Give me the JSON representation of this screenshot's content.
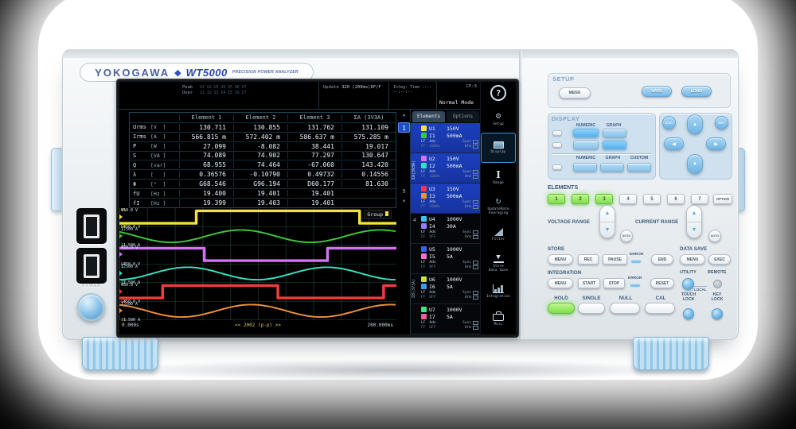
{
  "branding": {
    "maker": "YOKOGAWA",
    "diamond": "◆",
    "model": "WT5000",
    "subtitle": "PRECISION POWER ANALYZER"
  },
  "power_label": "POWER",
  "screen": {
    "topbar": {
      "peak_label": "Peak",
      "peak_values": "U1 U2 U3 U4 U5 U6 U7",
      "over_label": "Over",
      "over_values": "I1 I2 I3 I4 I5 I6 I7",
      "update_label": "Update",
      "update_value": "320 (200ms)",
      "update_suffix": "DF/F",
      "integ_label": "Integ:",
      "time_label": "Time",
      "time_value": "------:--:--",
      "cf": "CF:3",
      "mode": "Normal Mode"
    },
    "table": {
      "headers": [
        "Element 1",
        "Element 2",
        "Element 3",
        "ΣA (3V3A)"
      ],
      "rows": [
        {
          "name": "Urms",
          "unit": "[V  ]",
          "values": [
            "130.711",
            "130.855",
            "131.762",
            "131.109"
          ]
        },
        {
          "name": "Irms",
          "unit": "[A  ]",
          "values": [
            "566.815 m",
            "572.402 m",
            "586.637 m",
            "575.285 m"
          ]
        },
        {
          "name": "P",
          "unit": "[W  ]",
          "values": [
            "27.099",
            "-8.082",
            "38.441",
            "19.017"
          ]
        },
        {
          "name": "S",
          "unit": "[VA ]",
          "values": [
            "74.089",
            "74.902",
            "77.297",
            "130.647"
          ]
        },
        {
          "name": "Q",
          "unit": "[var]",
          "values": [
            "68.955",
            "74.464",
            "-67.060",
            "143.420"
          ]
        },
        {
          "name": "λ",
          "unit": "[   ]",
          "values": [
            "0.36576",
            "-0.10790",
            "0.49732",
            "0.14556"
          ]
        },
        {
          "name": "Φ",
          "unit": "[°  ]",
          "values": [
            "G68.546",
            "G96.194",
            "D60.177",
            "81.630"
          ]
        },
        {
          "name": "fU",
          "unit": "[Hz ]",
          "values": [
            "19.400",
            "19.401",
            "19.401",
            ""
          ]
        },
        {
          "name": "fI",
          "unit": "[Hz ]",
          "values": [
            "19.399",
            "19.403",
            "19.401",
            ""
          ]
        }
      ]
    },
    "pager": {
      "up": "▲",
      "current": "1",
      "dot": "·",
      "last": "9",
      "down": "▼"
    },
    "elements_panel": {
      "tabs": [
        "Elements",
        "Options"
      ],
      "group_a_label": "ΣA(3V3A)",
      "element4_label": "4",
      "group_b_label": "ΣB(3V3A)",
      "sub": {
        "lf": "LF",
        "ff": "FF",
        "adv": "Adv",
        "sync": "Sync",
        "hrm": "Hrm"
      },
      "elements": [
        {
          "u": "U1",
          "u_range": "150V",
          "u_color": "#f2e23c",
          "i": "I1",
          "i_range": "500mA",
          "i_color": "#3dc83d",
          "adv": "100Hz",
          "selected": true
        },
        {
          "u": "U2",
          "u_range": "150V",
          "u_color": "#d173f2",
          "i": "I2",
          "i_range": "500mA",
          "i_color": "#35e0c0",
          "adv": "100Hz",
          "selected": true
        },
        {
          "u": "U3",
          "u_range": "150V",
          "u_color": "#f03c3c",
          "i": "I3",
          "i_range": "500mA",
          "i_color": "#f09035",
          "adv": "100Hz",
          "selected": true
        },
        {
          "u": "U4",
          "u_range": "1000V",
          "u_color": "#35c8f0",
          "i": "I4",
          "i_range": "30A",
          "i_color": "#9a7af5",
          "adv": "OFF"
        },
        {
          "u": "U5",
          "u_range": "1000V",
          "u_color": "#3565f0",
          "i": "I5",
          "i_range": "5A",
          "i_color": "#f573cf",
          "adv": "OFF"
        },
        {
          "u": "U6",
          "u_range": "1000V",
          "u_color": "#cde03c",
          "i": "I6",
          "i_range": "5A",
          "i_color": "#3c9af0",
          "adv": "OFF"
        },
        {
          "u": "U7",
          "u_range": "1000V",
          "u_color": "#3ce580",
          "i": "I7",
          "i_range": "5A",
          "i_color": "#f55c9a",
          "adv": "OFF"
        }
      ]
    },
    "sidebar": {
      "help": "?",
      "items": [
        {
          "label": "Setup"
        },
        {
          "label": "Display"
        },
        {
          "label": "Range"
        },
        {
          "label": "UpdateRate",
          "label2": "Averaging"
        },
        {
          "label": "Filter"
        },
        {
          "label": "Store",
          "label2": "Data Save"
        },
        {
          "label": "Integration"
        },
        {
          "label": "Misc"
        }
      ]
    },
    "waveform": {
      "group_label": "Group",
      "time_start": "0.000s",
      "center_label": "<< 2002 (p-p) >>",
      "time_end": "200.000ms",
      "channels": [
        {
          "ch": "U1",
          "top": "450.0 V",
          "bottom": "-450.0 V",
          "color": "#f2e23c",
          "type": "square",
          "segments": [
            [
              0,
              96,
              -1
            ],
            [
              96,
              300,
              1
            ],
            [
              300,
              346,
              -1
            ]
          ]
        },
        {
          "ch": "I1",
          "top": "1.500 A",
          "bottom": "-1.500 A",
          "color": "#3dc83d",
          "type": "sine",
          "phase": 2.37,
          "period": 174
        },
        {
          "ch": "U2",
          "top": "450.0 V",
          "bottom": "-450.0 V",
          "color": "#d173f2",
          "type": "square",
          "segments": [
            [
              0,
              106,
              1
            ],
            [
              106,
              260,
              -1
            ],
            [
              260,
              346,
              1
            ]
          ]
        },
        {
          "ch": "I2",
          "top": "1.500 A",
          "bottom": "-1.500 A",
          "color": "#35e0c0",
          "type": "sine",
          "phase": 4.79,
          "period": 174
        },
        {
          "ch": "U3",
          "top": "450.0 V",
          "bottom": "-450.0 V",
          "color": "#f03c3c",
          "type": "square",
          "segments": [
            [
              0,
              54,
              -1
            ],
            [
              54,
              198,
              1
            ],
            [
              198,
              330,
              -1
            ],
            [
              330,
              346,
              1
            ]
          ]
        },
        {
          "ch": "I3",
          "top": "1.500 A",
          "bottom": "-1.500 A",
          "color": "#f09035",
          "type": "sine",
          "phase": 1.9,
          "period": 174
        }
      ]
    }
  },
  "panel": {
    "setup": {
      "label": "SETUP",
      "menu": "MENU",
      "save": "SAVE",
      "load": "LOAD"
    },
    "display": {
      "label": "DISPLAY",
      "row1_labels": [
        "NUMERIC",
        "GRAPH"
      ],
      "row2_labels": [
        "NUMERIC",
        "GRAPH",
        "CUSTOM"
      ]
    },
    "nav": {
      "esc": "ESC",
      "set": "SET",
      "up": "▲",
      "left": "◀",
      "right": "▶",
      "down": "▼"
    },
    "elements": {
      "label": "ELEMENTS",
      "keys": [
        {
          "t": "1",
          "lit": true
        },
        {
          "t": "2",
          "lit": true
        },
        {
          "t": "3",
          "lit": true
        },
        {
          "t": "4"
        },
        {
          "t": "5"
        },
        {
          "t": "6"
        },
        {
          "t": "7"
        }
      ],
      "option": "OPTION"
    },
    "voltage_range": {
      "label": "VOLTAGE RANGE",
      "auto": "AUTO"
    },
    "current_range": {
      "label": "CURRENT RANGE",
      "auto": "AUTO"
    },
    "store": {
      "label": "STORE",
      "menu": "MENU",
      "rec": "REC",
      "pause": "PAUSE",
      "error": "ERROR",
      "end": "END"
    },
    "data_save": {
      "label": "DATA SAVE",
      "menu": "MENU",
      "exec": "EXEC"
    },
    "integration": {
      "label": "INTEGRATION",
      "menu": "MENU",
      "start": "START",
      "stop": "STOP",
      "error": "ERROR",
      "reset": "RESET"
    },
    "utility": {
      "utility": "UTILITY",
      "remote": "REMOTE",
      "local": "LOCAL"
    },
    "keys": {
      "hold": "HOLD",
      "single": "SINGLE",
      "null": "NULL",
      "cal": "CAL",
      "touch_lock": "TOUCH\nLOCK",
      "key_lock": "KEY\nLOCK"
    }
  }
}
